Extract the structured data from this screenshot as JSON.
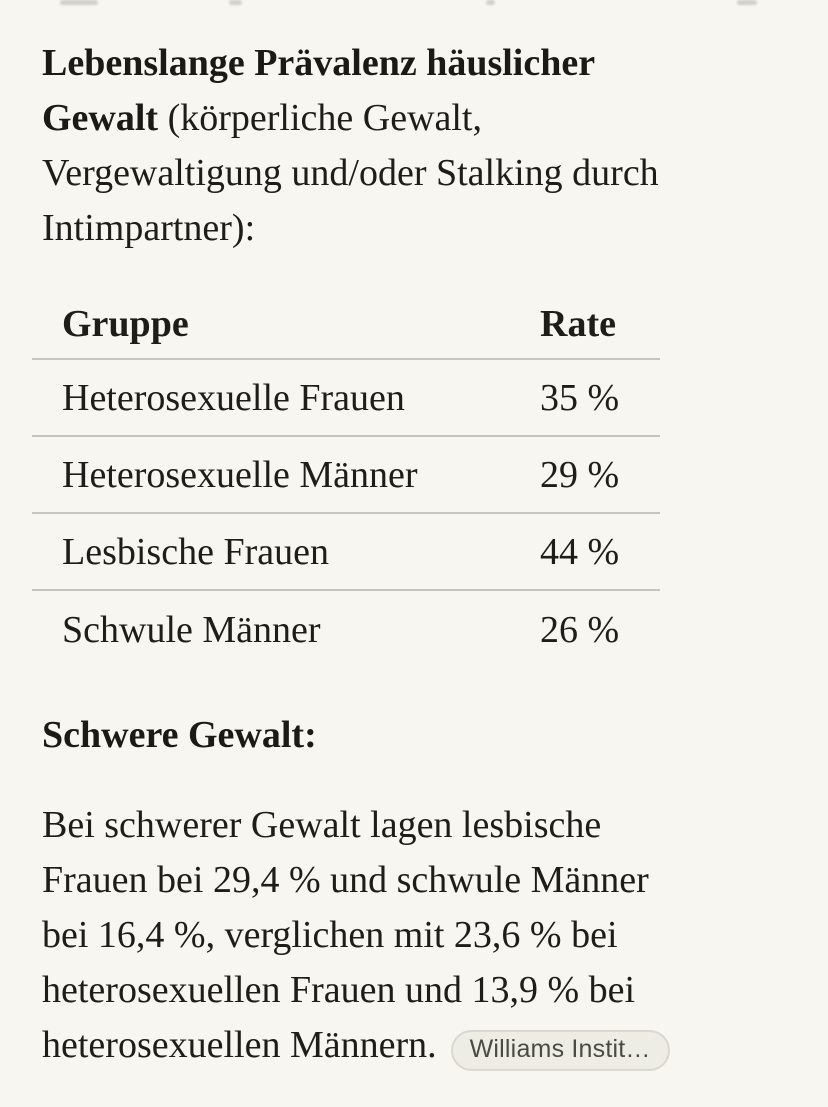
{
  "page": {
    "background": "#F7F6F0",
    "text_color": "#1E1D18",
    "divider_color": "#C6C5BC"
  },
  "intro": {
    "bold_part": "Lebenslange Prävalenz häuslicher\nGewalt",
    "regular_part": " (körperliche Gewalt,\nVergewaltigung und/oder Stalking durch\nIntimpartner):"
  },
  "table": {
    "columns": [
      "Gruppe",
      "Rate"
    ],
    "rows": [
      {
        "group": "Heterosexuelle Frauen",
        "rate": "35 %"
      },
      {
        "group": "Heterosexuelle Männer",
        "rate": "29 %"
      },
      {
        "group": "Lesbische Frauen",
        "rate": "44 %"
      },
      {
        "group": "Schwule Männer",
        "rate": "26 %"
      }
    ]
  },
  "severe": {
    "heading": "Schwere Gewalt:",
    "body": "Bei schwerer Gewalt lagen lesbische\nFrauen bei 29,4 % und schwule Männer\nbei 16,4 %, verglichen mit 23,6 % bei\nheterosexuellen Frauen und 13,9 % bei\nheterosexuellen Männern.",
    "citation": {
      "label": "Williams Instit…",
      "text_color": "#4C4A44",
      "background": "#EDECE5",
      "border_color": "#DAD8CF"
    }
  }
}
